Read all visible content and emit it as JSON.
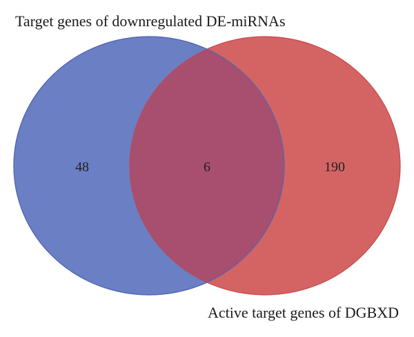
{
  "diagram": {
    "type": "venn",
    "sets": [
      {
        "id": "left",
        "label": "Target genes of downregulated DE-miRNAs",
        "only_count": "48",
        "fill": "#6a7fc4",
        "stroke": "#5266b0"
      },
      {
        "id": "right",
        "label": "Active target genes of DGBXD",
        "only_count": "190",
        "fill": "#d46464",
        "stroke": "#c64848"
      }
    ],
    "intersection_count": "6",
    "intersection_fill": "#a84e6e"
  }
}
